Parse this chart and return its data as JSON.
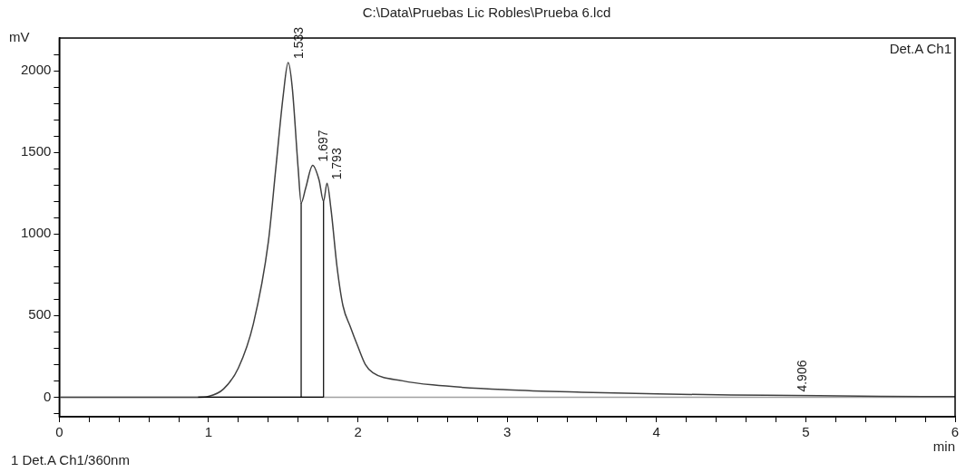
{
  "chart_data": {
    "type": "line",
    "title": "C:\\Data\\Pruebas Lic Robles\\Prueba 6.lcd",
    "xlabel": "min",
    "ylabel": "mV",
    "legend": "top right",
    "grid": false,
    "marker": "none",
    "line_style": "solid",
    "xlim": [
      0,
      6
    ],
    "ylim": [
      -120,
      2200
    ],
    "xticks": [
      0,
      {
        "value": 0.2,
        "label": null
      },
      {
        "value": 0.4,
        "label": null
      },
      {
        "value": 0.6,
        "label": null
      },
      {
        "value": 0.8,
        "label": null
      },
      1,
      {
        "value": 1.2,
        "label": null
      },
      {
        "value": 1.4,
        "label": null
      },
      {
        "value": 1.6,
        "label": null
      },
      {
        "value": 1.8,
        "label": null
      },
      2,
      {
        "value": 2.2,
        "label": null
      },
      {
        "value": 2.4,
        "label": null
      },
      {
        "value": 2.6,
        "label": null
      },
      {
        "value": 2.8,
        "label": null
      },
      3,
      {
        "value": 3.2,
        "label": null
      },
      {
        "value": 3.4,
        "label": null
      },
      {
        "value": 3.6,
        "label": null
      },
      {
        "value": 3.8,
        "label": null
      },
      4,
      {
        "value": 4.2,
        "label": null
      },
      {
        "value": 4.4,
        "label": null
      },
      {
        "value": 4.6,
        "label": null
      },
      {
        "value": 4.8,
        "label": null
      },
      5,
      {
        "value": 5.2,
        "label": null
      },
      {
        "value": 5.4,
        "label": null
      },
      {
        "value": 5.6,
        "label": null
      },
      {
        "value": 5.8,
        "label": null
      },
      6
    ],
    "yticks": [
      {
        "value": -100,
        "label": null
      },
      0,
      {
        "value": 100,
        "label": null
      },
      {
        "value": 200,
        "label": null
      },
      {
        "value": 300,
        "label": null
      },
      {
        "value": 400,
        "label": null
      },
      500,
      {
        "value": 600,
        "label": null
      },
      {
        "value": 700,
        "label": null
      },
      {
        "value": 800,
        "label": null
      },
      {
        "value": 900,
        "label": null
      },
      1000,
      {
        "value": 1100,
        "label": null
      },
      {
        "value": 1200,
        "label": null
      },
      {
        "value": 1300,
        "label": null
      },
      {
        "value": 1400,
        "label": null
      },
      1500,
      {
        "value": 1600,
        "label": null
      },
      {
        "value": 1700,
        "label": null
      },
      {
        "value": 1800,
        "label": null
      },
      {
        "value": 1900,
        "label": null
      },
      2000,
      {
        "value": 2100,
        "label": null
      }
    ],
    "series": [
      {
        "name": "Det.A Ch1",
        "color": "#404040",
        "x": [
          0,
          0.93,
          1.0,
          1.1,
          1.2,
          1.3,
          1.4,
          1.45,
          1.5,
          1.533,
          1.56,
          1.6,
          1.62,
          1.65,
          1.697,
          1.74,
          1.77,
          1.793,
          1.82,
          1.86,
          1.9,
          1.95,
          2.0,
          2.05,
          2.1,
          2.3,
          2.5,
          3.0,
          3.5,
          4.0,
          4.5,
          4.906,
          5.5,
          6.0
        ],
        "values": [
          0,
          0,
          5,
          50,
          180,
          450,
          950,
          1400,
          1850,
          2050,
          1900,
          1400,
          1190,
          1280,
          1420,
          1330,
          1200,
          1310,
          1150,
          800,
          560,
          430,
          310,
          200,
          150,
          100,
          75,
          45,
          30,
          20,
          13,
          10,
          5,
          3
        ]
      },
      {
        "color": "#000000",
        "x": [
          1.62,
          1.62
        ],
        "values": [
          0,
          1190
        ]
      },
      {
        "color": "#000000",
        "x": [
          1.77,
          1.77
        ],
        "values": [
          0,
          1200
        ]
      },
      {
        "color": "#000000",
        "x": [
          0.93,
          1.77
        ],
        "values": [
          0,
          0
        ]
      }
    ],
    "ref_lines": [
      {
        "axis": "y",
        "value": 0,
        "color": "#a0a0a0"
      }
    ],
    "annotations": [
      {
        "text": "1.533",
        "x": 1.533,
        "y": 2050
      },
      {
        "text": "1.697",
        "x": 1.697,
        "y": 1420
      },
      {
        "text": "1.793",
        "x": 1.793,
        "y": 1310
      },
      {
        "text": "4.906",
        "x": 4.906,
        "y": 10
      },
      "1  Det.A Ch1/360nm"
    ]
  }
}
